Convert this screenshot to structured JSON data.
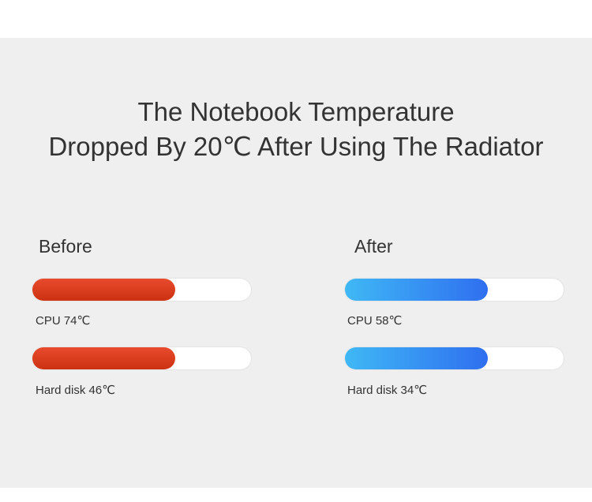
{
  "header": {
    "title_lines": [
      "The Notebook Temperature",
      "Dropped By 20℃ After Using The Radiator"
    ]
  },
  "panels": [
    {
      "heading": "Before",
      "items": [
        {
          "label": "CPU 74℃"
        },
        {
          "label": "Hard disk 46℃"
        }
      ]
    },
    {
      "heading": "After",
      "items": [
        {
          "label": "CPU 58℃"
        },
        {
          "label": "Hard disk 34℃"
        }
      ]
    }
  ]
}
